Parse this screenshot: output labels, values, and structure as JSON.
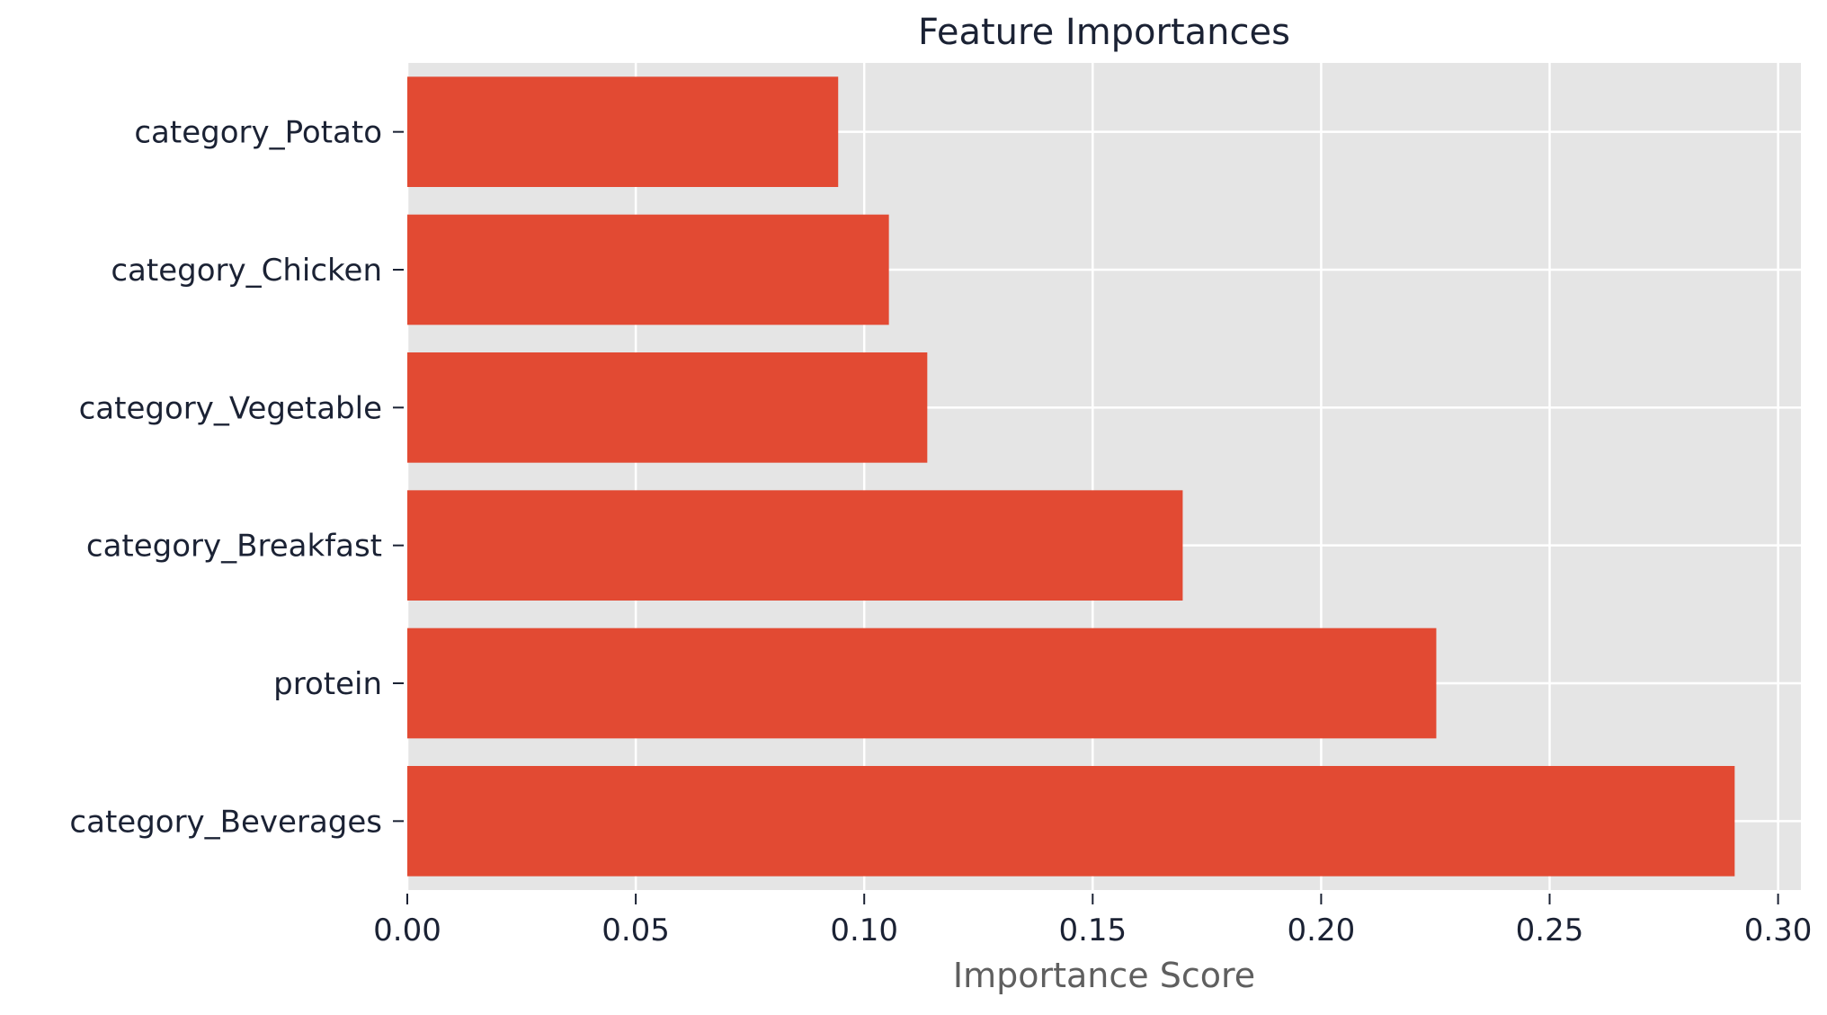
{
  "chart_data": {
    "type": "bar",
    "orientation": "horizontal",
    "title": "Feature Importances",
    "xlabel": "Importance Score",
    "ylabel": "",
    "categories": [
      "category_Beverages",
      "protein",
      "category_Breakfast",
      "category_Vegetable",
      "category_Chicken",
      "category_Potato"
    ],
    "values": [
      0.2905,
      0.2252,
      0.1697,
      0.1138,
      0.1054,
      0.0943
    ],
    "xlim": [
      0,
      0.305
    ],
    "xticks": [
      0.0,
      0.05,
      0.1,
      0.15,
      0.2,
      0.25,
      0.3
    ],
    "xtick_labels": [
      "0.00",
      "0.05",
      "0.10",
      "0.15",
      "0.20",
      "0.25",
      "0.30"
    ],
    "grid": true,
    "bar_color": "#e24a33",
    "plot_background": "#e5e5e5",
    "grid_color": "#ffffff"
  }
}
